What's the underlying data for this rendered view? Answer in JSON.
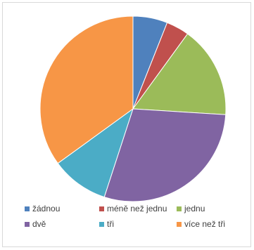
{
  "chart_data": {
    "type": "pie",
    "title": "",
    "legend_position": "bottom",
    "slices": [
      {
        "label": "žádnou",
        "value": 6.0,
        "color": "#4f81bd"
      },
      {
        "label": "méně než jednu",
        "value": 4.0,
        "color": "#c0504d"
      },
      {
        "label": "jednu",
        "value": 16.0,
        "color": "#9bbb59"
      },
      {
        "label": "dvě",
        "value": 29.0,
        "color": "#8064a2"
      },
      {
        "label": "tři",
        "value": 10.0,
        "color": "#4bacc6"
      },
      {
        "label": "více než tři",
        "value": 35.0,
        "color": "#f79646"
      }
    ]
  }
}
